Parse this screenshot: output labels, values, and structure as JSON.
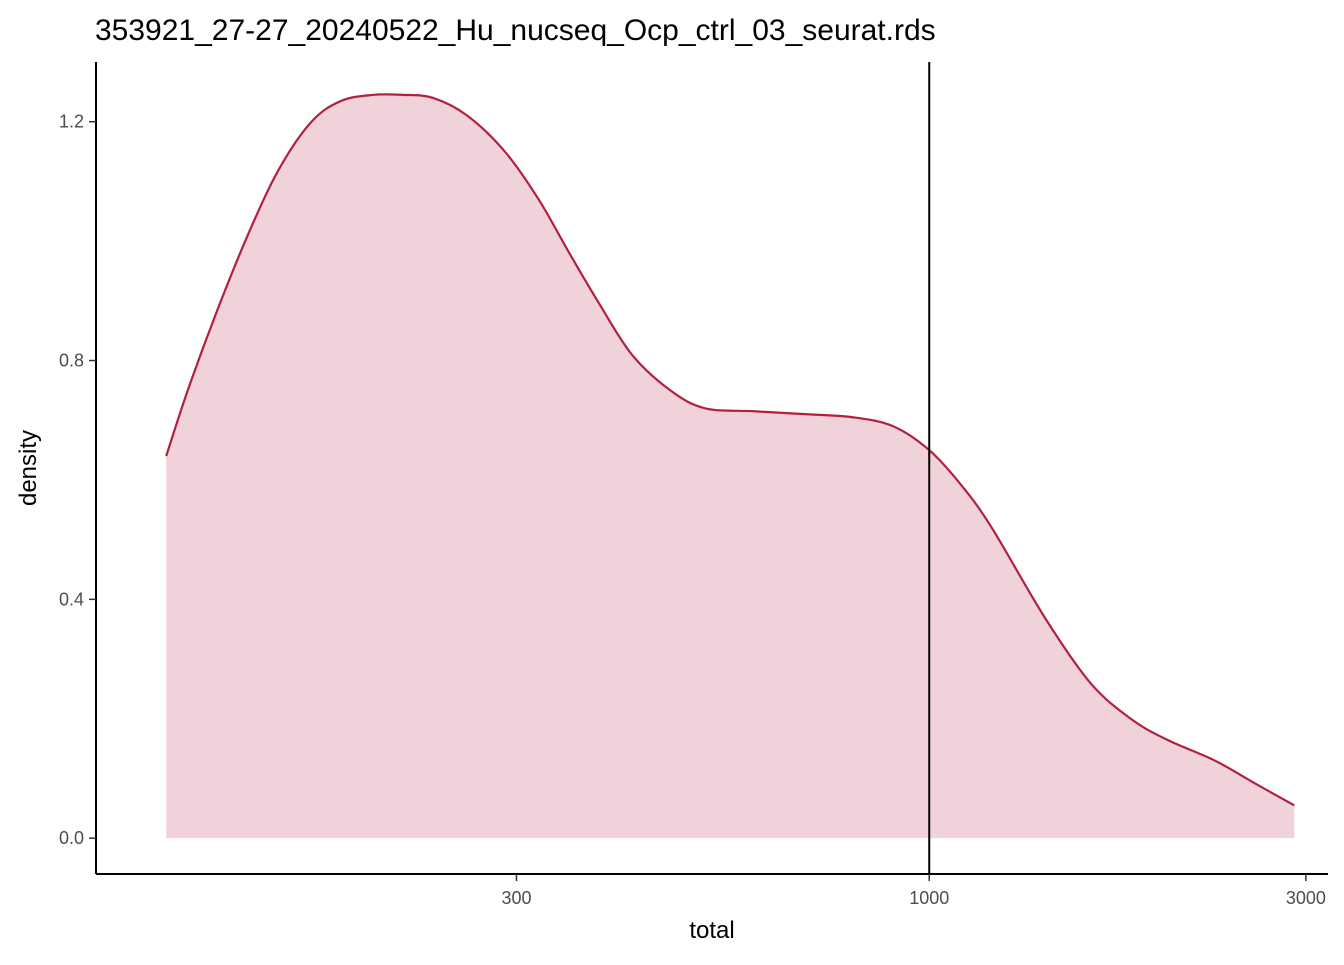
{
  "chart_data": {
    "type": "area",
    "title": "353921_27-27_20240522_Hu_nucseq_Ocp_ctrl_03_seurat.rds",
    "xlabel": "total",
    "ylabel": "density",
    "x_scale": "log10",
    "xlim": [
      88,
      3200
    ],
    "ylim": [
      -0.06,
      1.3
    ],
    "x_ticks": [
      300,
      1000,
      3000
    ],
    "x_tick_labels": [
      "300",
      "1000",
      "3000"
    ],
    "y_ticks": [
      0.0,
      0.4,
      0.8,
      1.2
    ],
    "y_tick_labels": [
      "0.0",
      "0.4",
      "0.8",
      "1.2"
    ],
    "grid": false,
    "legend": "none",
    "vline_x": 1000,
    "colors": {
      "line": "#b3203f",
      "fill": "#f0d3da",
      "vline": "#000000",
      "axis": "#000000"
    },
    "series": [
      {
        "x": [
          108,
          115,
          125,
          137,
          150,
          165,
          180,
          198,
          215,
          235,
          260,
          290,
          320,
          350,
          380,
          420,
          470,
          520,
          600,
          700,
          800,
          900,
          1000,
          1100,
          1200,
          1400,
          1600,
          1800,
          2000,
          2300,
          2600,
          2900
        ],
        "y": [
          0.64,
          0.75,
          0.88,
          1.01,
          1.12,
          1.2,
          1.235,
          1.245,
          1.245,
          1.24,
          1.21,
          1.15,
          1.07,
          0.98,
          0.9,
          0.81,
          0.75,
          0.72,
          0.715,
          0.71,
          0.705,
          0.69,
          0.65,
          0.59,
          0.52,
          0.37,
          0.26,
          0.2,
          0.165,
          0.13,
          0.09,
          0.055
        ]
      }
    ]
  }
}
